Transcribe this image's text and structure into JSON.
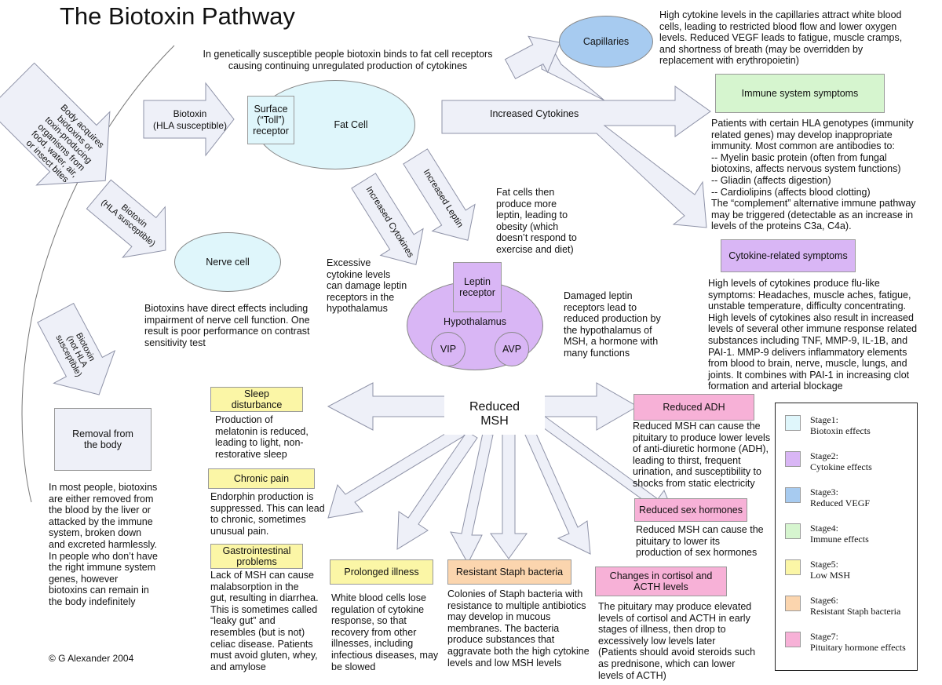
{
  "title": "The Biotoxin Pathway",
  "colors": {
    "stage1": "#dff6fb",
    "stage2": "#d9b6f5",
    "stage3": "#a7cbf0",
    "stage4": "#d6f5cf",
    "stage5": "#fbf6a6",
    "stage6": "#fbd5ae",
    "stage7": "#f7b1d7",
    "arrow_fill": "#eef0f8",
    "arrow_stroke": "#8f93a8"
  },
  "arrows": {
    "body_acquires": "Body acquires\nbiotoxins or\ntoxin-producing\norganisms from\nfood, water, air,\nor insect bites",
    "biotoxin_hla": "Biotoxin\n(HLA susceptible)",
    "biotoxin_hla_lower": "Biotoxin\n(HLA susceptible)",
    "biotoxin_not_hla": "Biotoxin\n(not HLA\nsusceptible)",
    "increased_cytokines": "Increased Cytokines",
    "increased_cytokines_down": "Increased Cytokines",
    "increased_leptin": "Increased Leptin"
  },
  "nodes": {
    "surface_receptor": "Surface\n(“Toll”)\nreceptor",
    "fat_cell": "Fat Cell",
    "nerve_cell": "Nerve cell",
    "capillaries": "Capillaries",
    "leptin_receptor": "Leptin\nreceptor",
    "hypothalamus": "Hypothalamus",
    "vip": "VIP",
    "avp": "AVP",
    "reduced_msh": "Reduced\nMSH",
    "removal": "Removal from\nthe body"
  },
  "texts": {
    "genetically": "In genetically susceptible people biotoxin binds to fat cell receptors\ncausing continuing unregulated production of cytokines",
    "capillaries_desc": "High cytokine levels in the capillaries attract white blood\ncells, leading to restricted blood flow and lower oxygen\nlevels. Reduced VEGF leads to fatigue, muscle cramps,\nand shortness of breath (may be overridden by\nreplacement with erythropoietin)",
    "immune_desc": "Patients with certain HLA genotypes (immunity\nrelated genes) may develop inappropriate\nimmunity. Most common are antibodies to:\n-- Myelin basic protein (often from fungal\nbiotoxins, affects nervous system functions)\n-- Gliadin (affects digestion)\n-- Cardiolipins (affects blood clotting)\nThe “complement” alternative immune pathway\nmay be triggered (detectable as an increase in\nlevels of the proteins C3a, C4a).",
    "cytokine_desc": "High levels of cytokines produce flu-like\nsymptoms: Headaches, muscle aches, fatigue,\nunstable temperature, difficulty concentrating.\nHigh levels of cytokines also result in increased\nlevels of several other immune response related\nsubstances including TNF, MMP-9, IL-1B, and\nPAI-1. MMP-9 delivers inflammatory elements\nfrom blood to brain, nerve, muscle, lungs, and\njoints. It combines with PAI-1 in increasing clot\nformation and arterial blockage",
    "fat_cells_leptin": "Fat cells then\nproduce more\nleptin, leading to\nobesity (which\ndoesn’t respond to\nexercise and diet)",
    "excessive_cytokine": "Excessive\ncytokine levels\ncan damage leptin\nreceptors in the\nhypothalamus",
    "damaged_leptin": "Damaged leptin\nreceptors lead to\nreduced production by\nthe hypothalamus of\nMSH, a hormone with\nmany functions",
    "nerve_desc": "Biotoxins have direct effects including\nimpairment of nerve cell function. One\nresult is poor performance on contrast\nsensitivity test",
    "removal_desc": "In most people, biotoxins\nare either removed from\nthe blood by the liver or\nattacked by the immune\nsystem, broken down\nand excreted harmlessly.\nIn people who don’t have\nthe right immune system\ngenes, however\nbiotoxins can remain in\nthe body indefinitely",
    "copyright": "© G Alexander 2004"
  },
  "labels": {
    "immune_symptoms": "Immune system symptoms",
    "cytokine_symptoms": "Cytokine-related symptoms",
    "sleep": "Sleep\ndisturbance",
    "chronic_pain": "Chronic pain",
    "gastro": "Gastrointestinal\nproblems",
    "prolonged": "Prolonged illness",
    "staph": "Resistant Staph bacteria",
    "cortisol": "Changes in cortisol and\nACTH levels",
    "adh": "Reduced ADH",
    "sex_hormones": "Reduced sex hormones"
  },
  "descs": {
    "sleep": "Production of\nmelatonin is reduced,\nleading to light, non-\nrestorative sleep",
    "chronic_pain": "Endorphin production is\nsuppressed. This can lead\nto chronic, sometimes\nunusual pain.",
    "gastro": "Lack of MSH can cause\nmalabsorption in  the\ngut, resulting in diarrhea.\nThis is sometimes called\n“leaky gut” and\nresembles (but is not)\nceliac disease. Patients\nmust avoid gluten, whey,\nand amylose",
    "prolonged": "White blood cells lose\nregulation of cytokine\nresponse, so that\nrecovery from other\nillnesses, including\ninfectious diseases, may\nbe slowed",
    "staph": "Colonies of Staph bacteria with\nresistance to multiple antibiotics\nmay develop in mucous\nmembranes. The bacteria\nproduce substances that\naggravate both the high cytokine\nlevels and low MSH levels",
    "cortisol": "The pituitary may produce elevated\nlevels of cortisol and ACTH in early\nstages of illness, then drop to\nexcessively low levels later\n(Patients should avoid steroids such\nas prednisone, which can lower\nlevels of ACTH)",
    "adh": "Reduced MSH can cause the\npituitary to produce lower levels\nof anti-diuretic hormone (ADH),\nleading to thirst, frequent\nurination, and susceptibility to\nshocks from static electricity",
    "sex_hormones": "Reduced MSH can cause the\npituitary to lower its\nproduction of sex hormones"
  },
  "legend": [
    {
      "label": "Stage1:\nBiotoxin effects",
      "color": "#dff6fb"
    },
    {
      "label": "Stage2:\nCytokine  effects",
      "color": "#d9b6f5"
    },
    {
      "label": "Stage3:\nReduced VEGF",
      "color": "#a7cbf0"
    },
    {
      "label": "Stage4:\nImmune effects",
      "color": "#d6f5cf"
    },
    {
      "label": "Stage5:\nLow MSH",
      "color": "#fbf6a6"
    },
    {
      "label": "Stage6:\nResistant Staph bacteria",
      "color": "#fbd5ae"
    },
    {
      "label": "Stage7:\nPituitary hormone effects",
      "color": "#f7b1d7"
    }
  ]
}
